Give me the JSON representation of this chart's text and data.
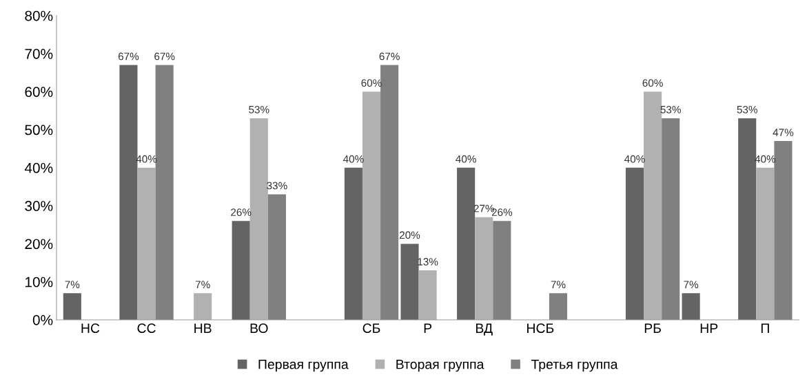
{
  "chart_data": {
    "type": "bar",
    "categories": [
      "НС",
      "СС",
      "НВ",
      "ВО",
      null,
      "СБ",
      "Р",
      "ВД",
      "НСБ",
      null,
      "РБ",
      "НР",
      "П"
    ],
    "series": [
      {
        "name": "Первая группа",
        "color": "#646464",
        "values": [
          7,
          67,
          null,
          26,
          null,
          40,
          20,
          40,
          null,
          null,
          40,
          7,
          53
        ],
        "value_labels": [
          "7%",
          "67%",
          null,
          "26%",
          null,
          "40%",
          "20%",
          "40%",
          null,
          null,
          "40%",
          "7%",
          "53%"
        ]
      },
      {
        "name": "Вторая группа",
        "color": "#b1b1b1",
        "values": [
          null,
          40,
          7,
          53,
          null,
          60,
          13,
          27,
          null,
          null,
          60,
          null,
          40
        ],
        "value_labels": [
          null,
          "40%",
          "7%",
          "53%",
          null,
          "60%",
          "13%",
          "27%",
          null,
          null,
          "60%",
          null,
          "40%"
        ]
      },
      {
        "name": "Третья группа",
        "color": "#808080",
        "values": [
          null,
          67,
          null,
          33,
          null,
          67,
          null,
          26,
          7,
          null,
          53,
          null,
          47
        ],
        "value_labels": [
          null,
          "67%",
          null,
          "33%",
          null,
          "67%",
          null,
          "26%",
          "7%",
          null,
          "53%",
          null,
          "47%"
        ]
      }
    ],
    "ylim": [
      0,
      80
    ],
    "yticks": [
      {
        "value": 0,
        "label": "0%"
      },
      {
        "value": 10,
        "label": "10%"
      },
      {
        "value": 20,
        "label": "20%"
      },
      {
        "value": 30,
        "label": "30%"
      },
      {
        "value": 40,
        "label": "40%"
      },
      {
        "value": 50,
        "label": "50%"
      },
      {
        "value": 60,
        "label": "60%"
      },
      {
        "value": 70,
        "label": "70%"
      },
      {
        "value": 80,
        "label": "80%"
      }
    ],
    "grid": false,
    "legend": "bottom"
  }
}
